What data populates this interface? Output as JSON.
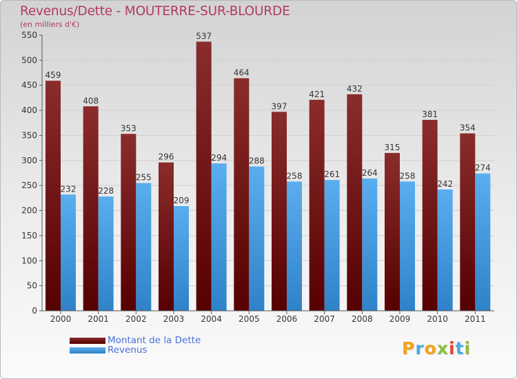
{
  "title": "Revenus/Dette - MOUTERRE-SUR-BLOURDE",
  "subtitle": "(en milliers d'€)",
  "chart_data": {
    "type": "bar",
    "categories": [
      "2000",
      "2001",
      "2002",
      "2003",
      "2004",
      "2005",
      "2006",
      "2007",
      "2008",
      "2009",
      "2010",
      "2011"
    ],
    "series": [
      {
        "name": "Montant de la Dette",
        "values": [
          459,
          408,
          353,
          296,
          537,
          464,
          397,
          421,
          432,
          315,
          381,
          354
        ],
        "color": "#7a1414"
      },
      {
        "name": "Revenus",
        "values": [
          232,
          228,
          255,
          209,
          294,
          288,
          258,
          261,
          264,
          258,
          242,
          274
        ],
        "color": "#4ea2e6"
      }
    ],
    "ylim": [
      0,
      550
    ],
    "yticks": [
      0,
      50,
      100,
      150,
      200,
      250,
      300,
      350,
      400,
      450,
      500,
      550
    ],
    "grid": true,
    "legend": "bottom-left"
  },
  "legend": {
    "debt_label": "Montant de la Dette",
    "revenue_label": "Revenus"
  },
  "logo": {
    "letters": [
      "P",
      "r",
      "o",
      "x",
      "i",
      "t",
      "i"
    ],
    "colors": [
      "#f2a31b",
      "#4ca9e0",
      "#f2a31b",
      "#8cbf3f",
      "#e6452e",
      "#4ca9e0",
      "#8cbf3f"
    ]
  }
}
